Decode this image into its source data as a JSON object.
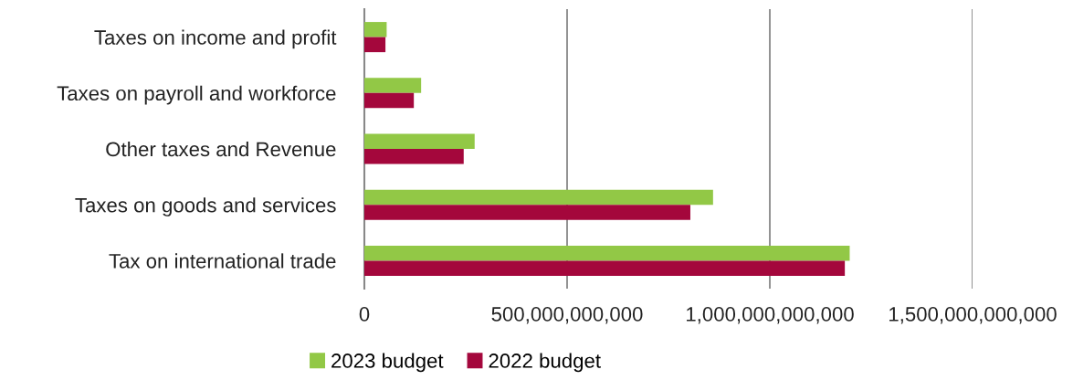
{
  "chart_data": {
    "type": "bar",
    "orientation": "horizontal",
    "categories": [
      "Taxes on income and profit",
      "Taxes on payroll and workforce",
      "Other taxes and Revenue",
      "Taxes on goods and services",
      "Tax on international trade"
    ],
    "series": [
      {
        "name": "2023 budget",
        "color": "#92c846",
        "values": [
          55000000000,
          140000000000,
          272000000000,
          860000000000,
          1197000000000
        ]
      },
      {
        "name": "2022 budget",
        "color": "#a4073c",
        "values": [
          52000000000,
          122000000000,
          245000000000,
          804000000000,
          1185000000000
        ]
      }
    ],
    "xlim": [
      0,
      1500000000000
    ],
    "xticks": [
      {
        "value": 0,
        "label": "0"
      },
      {
        "value": 500000000000,
        "label": "500,000,000,000"
      },
      {
        "value": 1000000000000,
        "label": "1,000,000,000,000"
      },
      {
        "value": 1500000000000,
        "label": "1,500,000,000,000"
      }
    ],
    "grid": "x",
    "legend": "bottom"
  }
}
